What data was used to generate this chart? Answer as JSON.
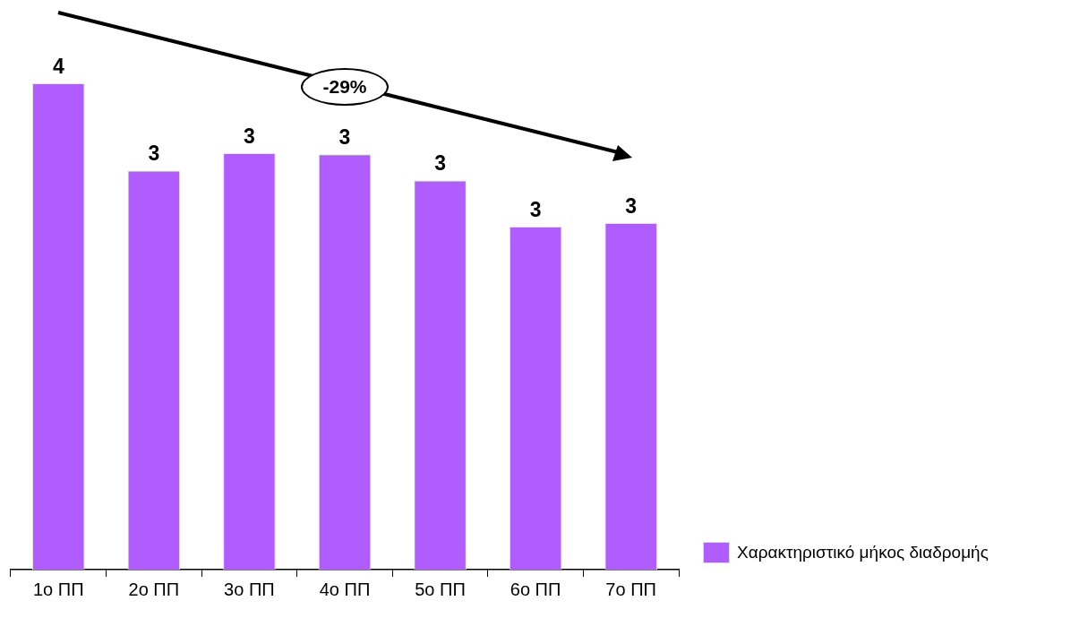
{
  "chart_data": {
    "type": "bar",
    "categories": [
      "1ο ΠΠ",
      "2ο ΠΠ",
      "3ο ΠΠ",
      "4ο ΠΠ",
      "5ο ΠΠ",
      "6ο ΠΠ",
      "7ο ΠΠ"
    ],
    "series": [
      {
        "name": "Χαρακτηριστικό μήκος διαδρομής",
        "color": "#b05cff",
        "values": [
          3.9,
          3.2,
          3.34,
          3.33,
          3.12,
          2.75,
          2.78
        ],
        "value_labels": [
          "4",
          "3",
          "3",
          "3",
          "3",
          "3",
          "3"
        ]
      }
    ],
    "annotations": [
      "-29%"
    ],
    "legend": "bottom right",
    "grid": false
  }
}
